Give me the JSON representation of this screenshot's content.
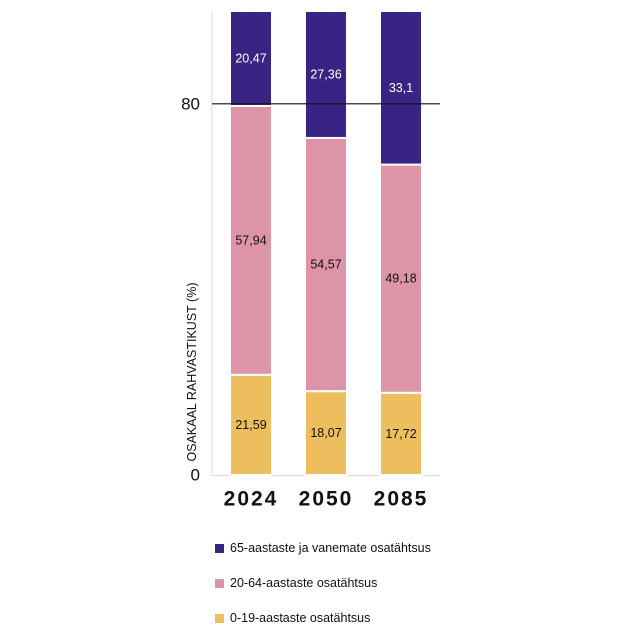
{
  "chart_data": {
    "type": "bar",
    "stacked": true,
    "categories": [
      "2024",
      "2050",
      "2085"
    ],
    "series": [
      {
        "name": "0-19-aastaste osatähtsus",
        "values": [
          21.59,
          18.07,
          17.72
        ],
        "labels": [
          "21,59",
          "18,07",
          "17,72"
        ],
        "color": "#EDBE5D",
        "label_color": "#111111"
      },
      {
        "name": "20-64-aastaste osatähtsus",
        "values": [
          57.94,
          54.57,
          49.18
        ],
        "labels": [
          "57,94",
          "54,57",
          "49,18"
        ],
        "color": "#DE94A8",
        "label_color": "#111111"
      },
      {
        "name": "65-aastaste ja vanemate osatähtsus",
        "values": [
          20.47,
          27.36,
          33.1
        ],
        "labels": [
          "20,47",
          "27,36",
          "33,1"
        ],
        "color": "#3A2483",
        "label_color": "#ffffff"
      }
    ],
    "ylabel": "OSAKAAL RAHVASTIKUST (%)",
    "ylim": [
      0,
      100
    ],
    "yticks": [
      0,
      80
    ],
    "ytick_labels": [
      "0",
      "80"
    ],
    "reference_line": 80,
    "legend_position": "bottom",
    "legend_order": [
      "65-aastaste ja vanemate osatähtsus",
      "20-64-aastaste osatähtsus",
      "0-19-aastaste osatähtsus"
    ]
  }
}
